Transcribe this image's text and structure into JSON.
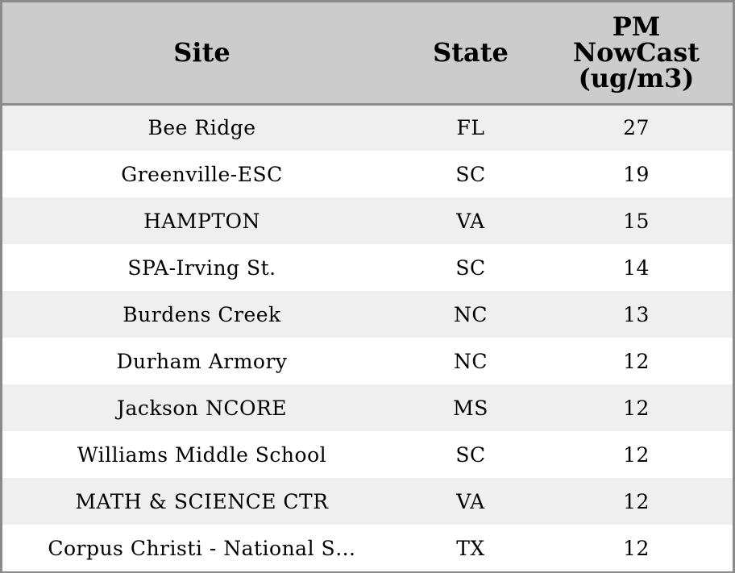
{
  "chart_data": {
    "type": "table",
    "columns": [
      "Site",
      "State",
      "PM NowCast (ug/m3)"
    ],
    "header_lines": {
      "site": [
        "Site"
      ],
      "state": [
        "State"
      ],
      "pm": [
        "PM",
        "NowCast",
        "(ug/m3)"
      ]
    },
    "rows": [
      {
        "site": "Bee Ridge",
        "state": "FL",
        "pm": 27
      },
      {
        "site": "Greenville-ESC",
        "state": "SC",
        "pm": 19
      },
      {
        "site": "HAMPTON",
        "state": "VA",
        "pm": 15
      },
      {
        "site": "SPA-Irving St.",
        "state": "SC",
        "pm": 14
      },
      {
        "site": "Burdens Creek",
        "state": "NC",
        "pm": 13
      },
      {
        "site": "Durham Armory",
        "state": "NC",
        "pm": 12
      },
      {
        "site": "Jackson NCORE",
        "state": "MS",
        "pm": 12
      },
      {
        "site": "Williams Middle School",
        "state": "SC",
        "pm": 12
      },
      {
        "site": "MATH & SCIENCE CTR",
        "state": "VA",
        "pm": 12
      },
      {
        "site": "Corpus Christi - National S…",
        "state": "TX",
        "pm": 12
      }
    ]
  },
  "colors": {
    "header_bg": "#cccccc",
    "row_odd_bg": "#efefef",
    "row_even_bg": "#ffffff",
    "border": "#8a8a8a",
    "text": "#000000"
  }
}
